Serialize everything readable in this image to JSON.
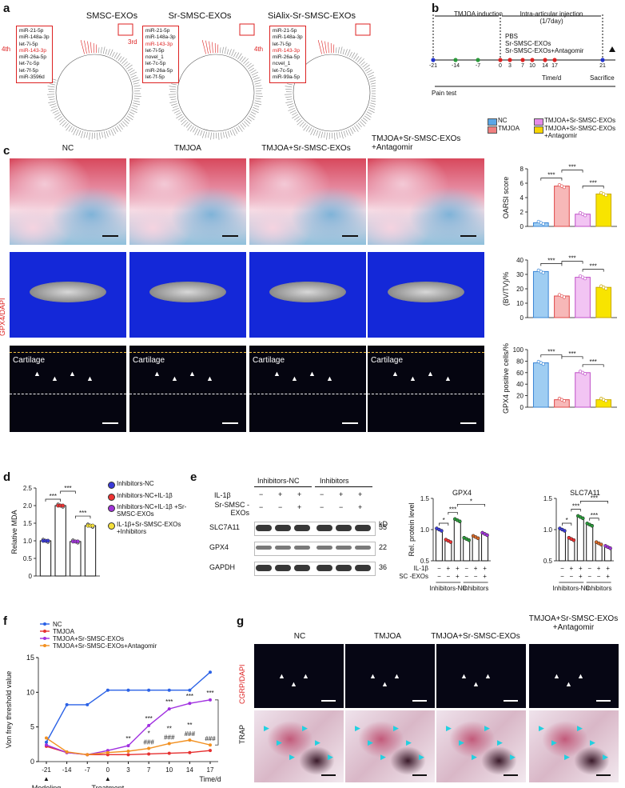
{
  "panels": {
    "a": "a",
    "b": "b",
    "c": "c",
    "d": "d",
    "e": "e",
    "f": "f",
    "g": "g"
  },
  "a": {
    "titles": [
      "SMSC-EXOs",
      "Sr-SMSC-EXOs",
      "SiAlix-Sr-SMSC-EXOs"
    ],
    "rank_labels": [
      "4th",
      "3rd",
      "4th"
    ],
    "lists": [
      [
        "miR-21-5p",
        "miR-148a-3p",
        "let-7i-5p",
        "miR-143-3p",
        "miR-26a-5p",
        "let-7c-5p",
        "let-7f-5p",
        "miR-3596d"
      ],
      [
        "miR-21-5p",
        "miR-148a-3p",
        "miR-143-3p",
        "let-7i-5p",
        "novel_1",
        "let-7c-5p",
        "miR-26a-5p",
        "let-7f-5p"
      ],
      [
        "miR-21-5p",
        "miR-148a-3p",
        "let-7i-5p",
        "miR-143-3p",
        "miR-26a-5p",
        "ncvel_1",
        "let-7c-5p",
        "miR-99a-5p"
      ]
    ]
  },
  "b": {
    "timeline_ticks": [
      "-21",
      "-14",
      "-7",
      "0",
      "3",
      "7",
      "10",
      "14",
      "17",
      "21"
    ],
    "induction": "TMJOA induction",
    "injection": "Intra-articular injection (1/7day)",
    "groups": [
      "PBS",
      "Sr-SMSC-EXOs",
      "Sr-SMSC-EXOs+Antagomir"
    ],
    "time_label": "Time/d",
    "sacrifice": "Sacrifice",
    "pain": "Pain test"
  },
  "legend_c": {
    "items": [
      "NC",
      "TMJOA",
      "TMJOA+Sr-SMSC-EXOs",
      "TMJOA+Sr-SMSC-EXOs +Antagomir"
    ],
    "colors": [
      "#5aa6e6",
      "#ef7f7f",
      "#e58be8",
      "#f7d500"
    ]
  },
  "c": {
    "cols": [
      "NC",
      "TMJOA",
      "TMJOA+Sr-SMSC-EXOs",
      "TMJOA+Sr-SMSC-EXOs +Antagomir"
    ],
    "row3_label": "GPX4/DAPI",
    "cartilage": "Cartilage"
  },
  "chart_data": [
    {
      "id": "oarsi",
      "type": "bar",
      "ylabel": "OARSI score",
      "ylim": [
        0,
        8
      ],
      "yticks": [
        "0",
        "2",
        "4",
        "6",
        "8"
      ],
      "values": [
        0.5,
        5.6,
        1.7,
        4.5
      ],
      "sig": [
        "***",
        "***",
        "***"
      ]
    },
    {
      "id": "bvtv",
      "type": "bar",
      "ylabel": "(BV/TV)/%",
      "ylim": [
        0,
        40
      ],
      "yticks": [
        "0",
        "10",
        "20",
        "30",
        "40"
      ],
      "values": [
        32,
        15,
        28,
        21
      ],
      "sig": [
        "***",
        "***",
        "***"
      ]
    },
    {
      "id": "gpx4pos",
      "type": "bar",
      "ylabel": "GPX4 positive cells/%",
      "ylim": [
        0,
        100
      ],
      "yticks": [
        "0",
        "20",
        "40",
        "60",
        "80",
        "100"
      ],
      "values": [
        77,
        13,
        60,
        13
      ],
      "sig": [
        "***",
        "***",
        "***"
      ]
    },
    {
      "id": "mda",
      "type": "bar",
      "ylabel": "Relative MDA",
      "ylim": [
        0,
        2.5
      ],
      "yticks": [
        "0",
        "0.5",
        "1.0",
        "1.5",
        "2.0",
        "2.5"
      ],
      "values": [
        1.0,
        2.0,
        0.98,
        1.43
      ],
      "colors": [
        "#3a3ad8",
        "#e33",
        "#a034d8",
        "#f5e03a"
      ],
      "legend": [
        "Inhibitors-NC",
        "Inhibitors-NC+IL-1β",
        "Inhibitors-NC+IL-1β +Sr-SMSC-EXOs",
        "IL-1β+Sr-SMSC-EXOs +Inhibitors"
      ],
      "sig": [
        "***",
        "***",
        "***"
      ]
    },
    {
      "id": "gpx4wb",
      "type": "bar",
      "title": "GPX4",
      "ylabel": "Rel. protein level",
      "ylim": [
        0.5,
        1.5
      ],
      "yticks": [
        "0.5",
        "1.0",
        "1.5"
      ],
      "values": [
        1.0,
        0.82,
        1.15,
        0.85,
        0.88,
        0.93
      ],
      "sig": [
        "*",
        "***",
        "*"
      ]
    },
    {
      "id": "slc7a11wb",
      "type": "bar",
      "title": "SLC7A11",
      "ylim": [
        0.5,
        1.5
      ],
      "yticks": [
        "0.5",
        "1.0",
        "1.5"
      ],
      "values": [
        1.0,
        0.85,
        1.2,
        1.08,
        0.78,
        0.72
      ],
      "sig": [
        "*",
        "***",
        "***",
        "***"
      ]
    },
    {
      "id": "vonfrey",
      "type": "line",
      "ylabel": "Von frey threshold value",
      "xlabel": "Time/d",
      "x": [
        "-21",
        "-14",
        "-7",
        "0",
        "3",
        "7",
        "10",
        "14",
        "17"
      ],
      "ylim": [
        0,
        15
      ],
      "yticks": [
        "0",
        "5",
        "10",
        "15"
      ],
      "series": [
        {
          "name": "NC",
          "color": "#2b62e6",
          "values": [
            2.8,
            8.2,
            8.2,
            10.3,
            10.3,
            10.3,
            10.3,
            10.3,
            12.9
          ]
        },
        {
          "name": "TMJOA",
          "color": "#e63030",
          "values": [
            2.2,
            1.3,
            1.0,
            1.0,
            1.0,
            1.1,
            1.2,
            1.3,
            1.6
          ]
        },
        {
          "name": "TMJOA+Sr-SMSC-EXOs",
          "color": "#a030e0",
          "values": [
            2.4,
            1.3,
            1.0,
            1.6,
            2.3,
            5.2,
            7.6,
            8.4,
            8.9
          ]
        },
        {
          "name": "TMJOA+Sr-SMSC-EXOs+Antagomir",
          "color": "#f29020",
          "values": [
            3.4,
            1.4,
            1.0,
            1.3,
            1.5,
            1.9,
            2.6,
            3.1,
            2.4
          ]
        }
      ],
      "annotations": [
        "***",
        "***",
        "***",
        "***",
        "***",
        "**",
        "*",
        "**",
        "**",
        "###",
        "###",
        "###",
        "###"
      ],
      "markers": [
        "Modeling",
        "Treatment"
      ]
    }
  ],
  "e": {
    "header_groups": [
      "Inhibitors-NC",
      "Inhibitors"
    ],
    "row_labels": [
      "IL-1β",
      "Sr-SMSC -EXOs"
    ],
    "il1b": [
      "−",
      "+",
      "+",
      "−",
      "+",
      "+"
    ],
    "exo": [
      "−",
      "−",
      "+",
      "−",
      "−",
      "+"
    ],
    "kd": "kD",
    "proteins": [
      "SLC7A11",
      "GPX4",
      "GAPDH"
    ],
    "sizes": [
      "55",
      "22",
      "36"
    ],
    "group_axis": [
      "Inhibitors-NC",
      "Inhibitors"
    ],
    "x_row1": "IL-1β",
    "x_row2": "Sr-SMSC -EXOs"
  },
  "g": {
    "cols": [
      "NC",
      "TMJOA",
      "TMJOA+Sr-SMSC-EXOs",
      "TMJOA+Sr-SMSC-EXOs +Antagomir"
    ],
    "row1": "CGRP/DAPI",
    "row2": "TRAP"
  }
}
